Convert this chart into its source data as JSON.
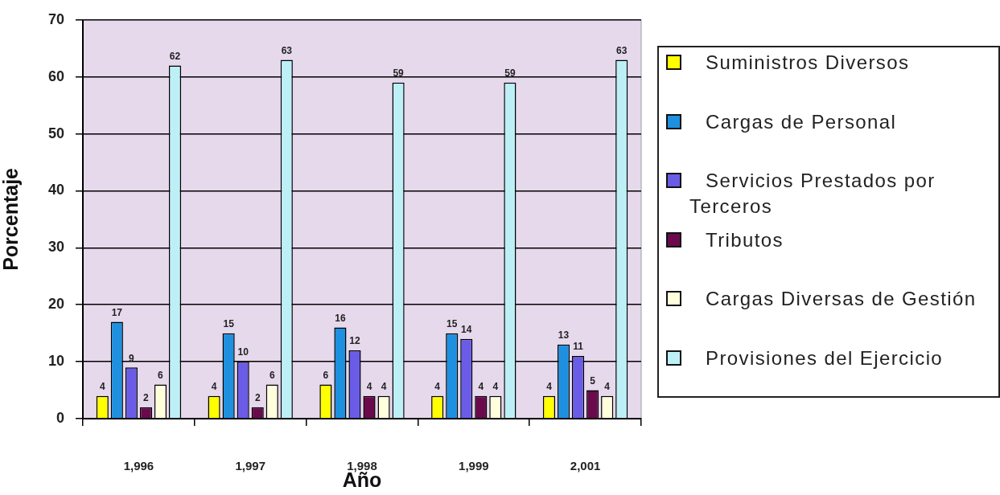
{
  "chart_data": {
    "type": "bar",
    "xlabel": "Año",
    "ylabel": "Porcentaje",
    "categories": [
      "1,996",
      "1,997",
      "1,998",
      "1,999",
      "2,001"
    ],
    "series": [
      {
        "name": "Suministros Diversos",
        "color": "#ffff00",
        "values": [
          4,
          4,
          6,
          4,
          4
        ]
      },
      {
        "name": "Cargas de Personal",
        "color": "#1e90e0",
        "values": [
          17,
          15,
          16,
          15,
          13
        ]
      },
      {
        "name": "Servicios Prestados por Terceros",
        "color": "#6a5ce6",
        "values": [
          9,
          10,
          12,
          14,
          11
        ]
      },
      {
        "name": "Tributos",
        "color": "#6a0a4c",
        "values": [
          2,
          2,
          4,
          4,
          5
        ]
      },
      {
        "name": "Cargas Diversas de Gestión",
        "color": "#ffffdc",
        "values": [
          6,
          6,
          4,
          4,
          4
        ]
      },
      {
        "name": "Provisiones del Ejercicio",
        "color": "#bcf0f6",
        "values": [
          62,
          63,
          59,
          59,
          63
        ]
      }
    ],
    "ylim": [
      0,
      70
    ],
    "yticks": [
      0,
      10,
      20,
      30,
      40,
      50,
      60,
      70
    ],
    "grid": "y",
    "legend": "right",
    "data_labels": true
  }
}
